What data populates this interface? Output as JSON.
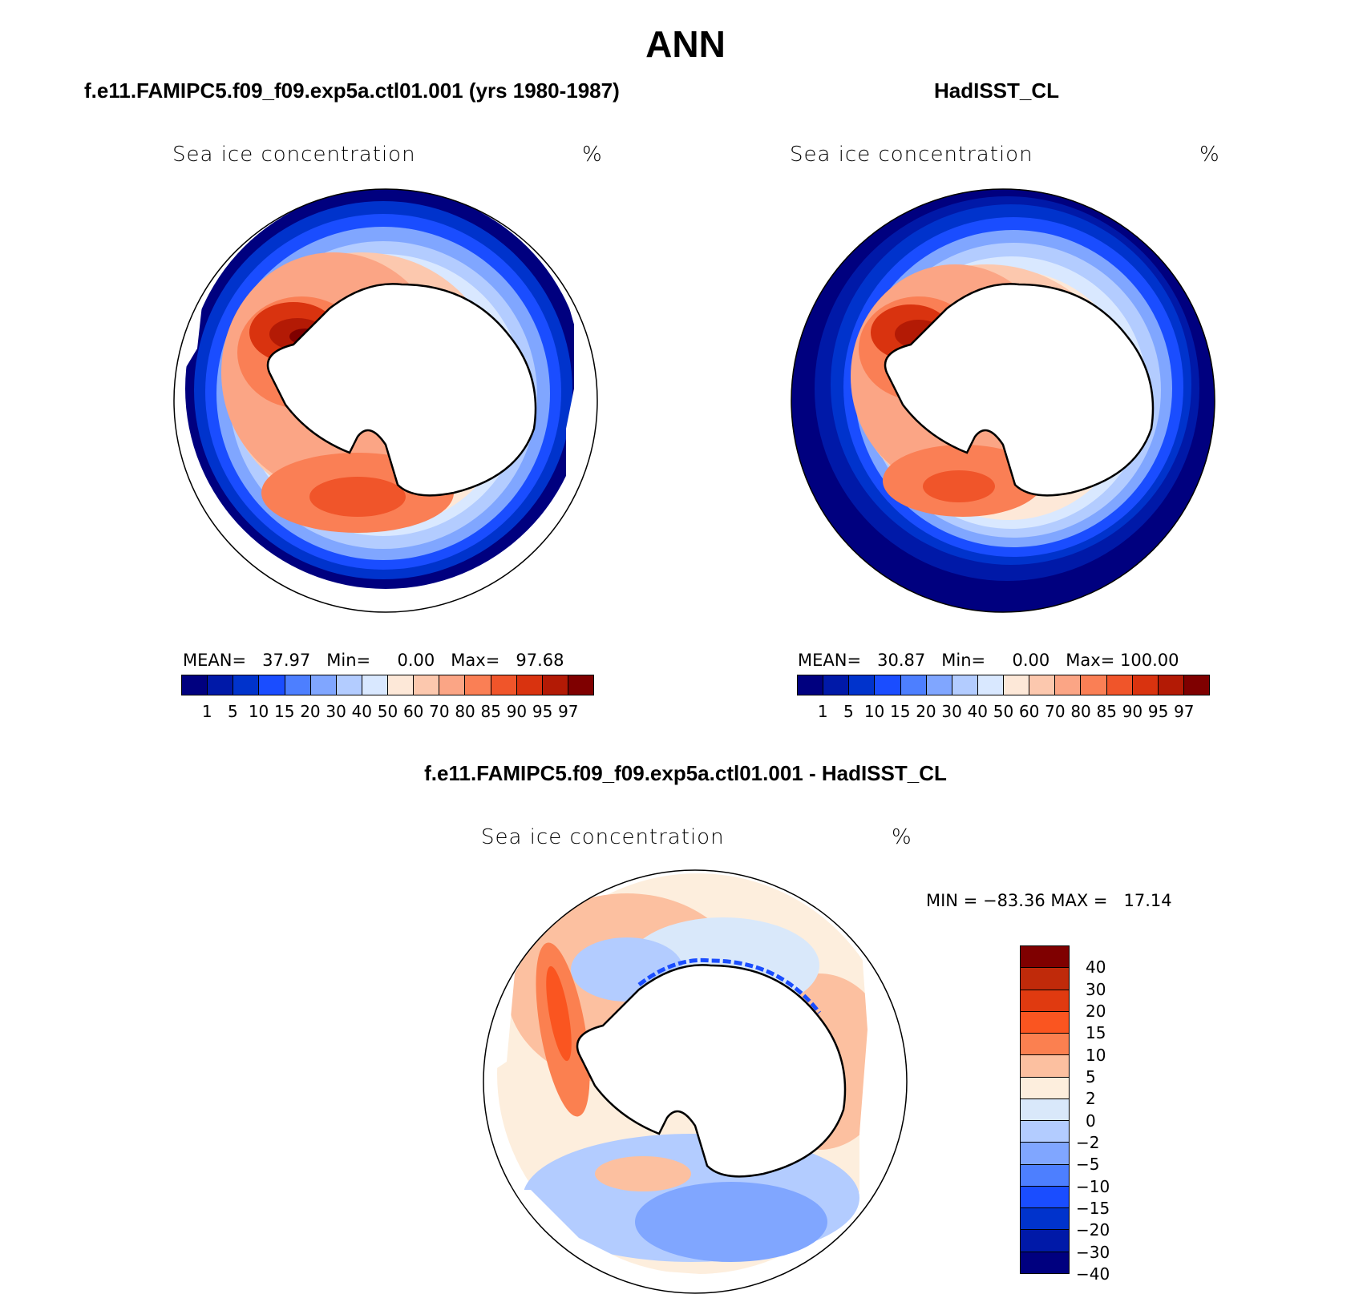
{
  "header": {
    "title": "ANN"
  },
  "panels": [
    {
      "title": "f.e11.FAMIPC5.f09_f09.exp5a.ctl01.001 (yrs 1980-1987)",
      "field": "Sea ice concentration",
      "units": "%",
      "stats": {
        "mean_label": "MEAN=",
        "mean": "37.97",
        "min_label": "Min=",
        "min": "0.00",
        "max_label": "Max=",
        "max": "97.68"
      }
    },
    {
      "title": "HadISST_CL",
      "field": "Sea ice concentration",
      "units": "%",
      "stats": {
        "mean_label": "MEAN=",
        "mean": "30.87",
        "min_label": "Min=",
        "min": "0.00",
        "max_label": "Max=",
        "max": "100.00"
      }
    },
    {
      "title": "f.e11.FAMIPC5.f09_f09.exp5a.ctl01.001 - HadISST_CL",
      "field": "Sea ice concentration",
      "units": "%",
      "minmax": "MIN = −83.36 MAX =   17.14"
    }
  ],
  "colorbar_abs": {
    "colors": [
      "#00007f",
      "#0019a8",
      "#0033cc",
      "#1a4dff",
      "#4d7fff",
      "#80a6ff",
      "#b3ccff",
      "#d9e8ff",
      "#fde8d8",
      "#fcc8ae",
      "#fba585",
      "#fa7f55",
      "#f0552a",
      "#d9330f",
      "#b31a05",
      "#7f0000"
    ],
    "labels": [
      "1",
      "5",
      "10",
      "15",
      "20",
      "30",
      "40",
      "50",
      "60",
      "70",
      "80",
      "85",
      "90",
      "95",
      "97"
    ]
  },
  "colorbar_diff": {
    "colors": [
      "#7f0000",
      "#c02a0a",
      "#e03a10",
      "#fa5520",
      "#fb8050",
      "#fcc0a0",
      "#fdeedd",
      "#d9e8fa",
      "#b3ccff",
      "#80a6ff",
      "#4d7fff",
      "#1a4dff",
      "#0033cc",
      "#0019a8",
      "#00007f"
    ],
    "labels": [
      "40",
      "30",
      "20",
      "15",
      "10",
      "5",
      "2",
      "0",
      "−2",
      "−5",
      "−10",
      "−15",
      "−20",
      "−30",
      "−40"
    ]
  },
  "chart_data": [
    {
      "type": "heatmap",
      "projection": "south polar stereographic",
      "title": "f.e11.FAMIPC5.f09_f09.exp5a.ctl01.001 (yrs 1980-1987)",
      "field": "Sea ice concentration",
      "units": "%",
      "mean": 37.97,
      "min": 0.0,
      "max": 97.68,
      "levels": [
        1,
        5,
        10,
        15,
        20,
        30,
        40,
        50,
        60,
        70,
        80,
        85,
        90,
        95,
        97
      ]
    },
    {
      "type": "heatmap",
      "projection": "south polar stereographic",
      "title": "HadISST_CL",
      "field": "Sea ice concentration",
      "units": "%",
      "mean": 30.87,
      "min": 0.0,
      "max": 100.0,
      "levels": [
        1,
        5,
        10,
        15,
        20,
        30,
        40,
        50,
        60,
        70,
        80,
        85,
        90,
        95,
        97
      ]
    },
    {
      "type": "heatmap",
      "projection": "south polar stereographic",
      "title": "f.e11.FAMIPC5.f09_f09.exp5a.ctl01.001 - HadISST_CL",
      "field": "Sea ice concentration",
      "units": "%",
      "min": -83.36,
      "max": 17.14,
      "levels": [
        -40,
        -30,
        -20,
        -15,
        -10,
        -5,
        -2,
        0,
        2,
        5,
        10,
        15,
        20,
        30,
        40
      ]
    }
  ]
}
